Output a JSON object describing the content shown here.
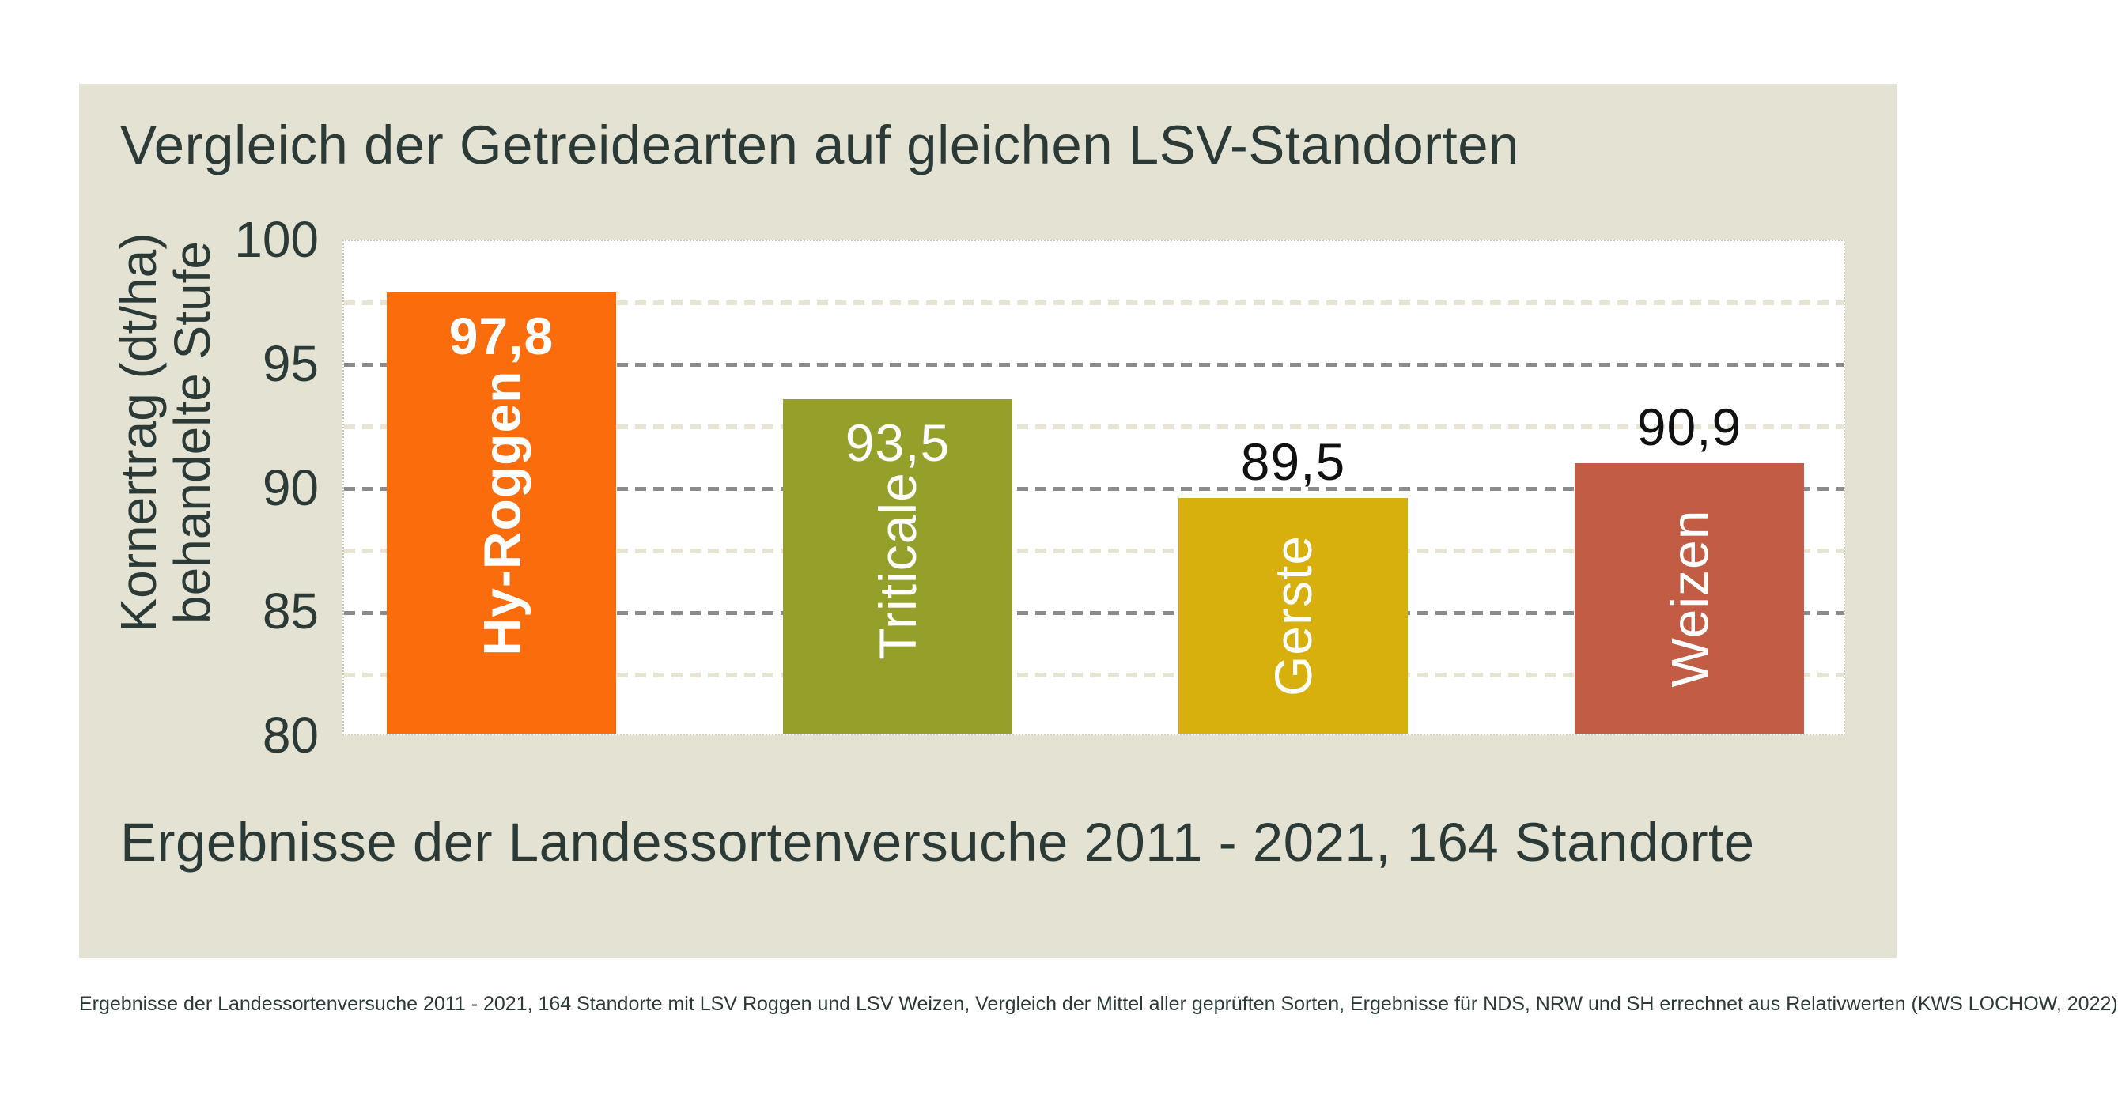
{
  "page": {
    "footnote": "Ergebnisse der Landessortenversuche 2011 - 2021, 164 Standorte mit LSV Roggen und LSV Weizen, Vergleich der Mittel aller geprüften Sorten, Ergebnisse für NDS, NRW und SH errechnet aus Relativwerten (KWS LOCHOW, 2022)"
  },
  "colors": {
    "card_background": "#E4E2D3",
    "plot_background": "#FFFFFF",
    "text_dark": "#2B3A37",
    "grid_major": "#8B8B8B",
    "grid_minor": "#E7E4D4",
    "plot_border": "#C9C7BA",
    "value_inside": "#FFFFFF",
    "value_outside": "#111111"
  },
  "chart_data": {
    "type": "bar",
    "title": "Vergleich der Getreidearten auf gleichen LSV-Standorten",
    "subtitle": "Ergebnisse der Landessortenversuche 2011 - 2021, 164 Standorte",
    "ylabel_lines": [
      "Kornertrag (dt/ha)",
      "behandelte Stufe"
    ],
    "ylim": [
      80,
      100
    ],
    "yticks": [
      100,
      95,
      90,
      85,
      80
    ],
    "grid": {
      "major": [
        95,
        90,
        85
      ],
      "minor": [
        97.5,
        92.5,
        87.5,
        82.5
      ]
    },
    "legend": "none",
    "categories": [
      "Hy-Roggen",
      "Triticale",
      "Gerste",
      "Weizen"
    ],
    "values": [
      97.8,
      93.5,
      89.5,
      90.9
    ],
    "series": [
      {
        "name": "Hy-Roggen",
        "value": 97.8,
        "value_label": "97,8",
        "color": "#FB6D0C",
        "value_placement": "inside",
        "emphasized": true
      },
      {
        "name": "Triticale",
        "value": 93.5,
        "value_label": "93,5",
        "color": "#94A02A",
        "value_placement": "inside",
        "emphasized": false
      },
      {
        "name": "Gerste",
        "value": 89.5,
        "value_label": "89,5",
        "color": "#D7B00E",
        "value_placement": "above",
        "emphasized": false
      },
      {
        "name": "Weizen",
        "value": 90.9,
        "value_label": "90,9",
        "color": "#C25C45",
        "value_placement": "above",
        "emphasized": false
      }
    ]
  }
}
